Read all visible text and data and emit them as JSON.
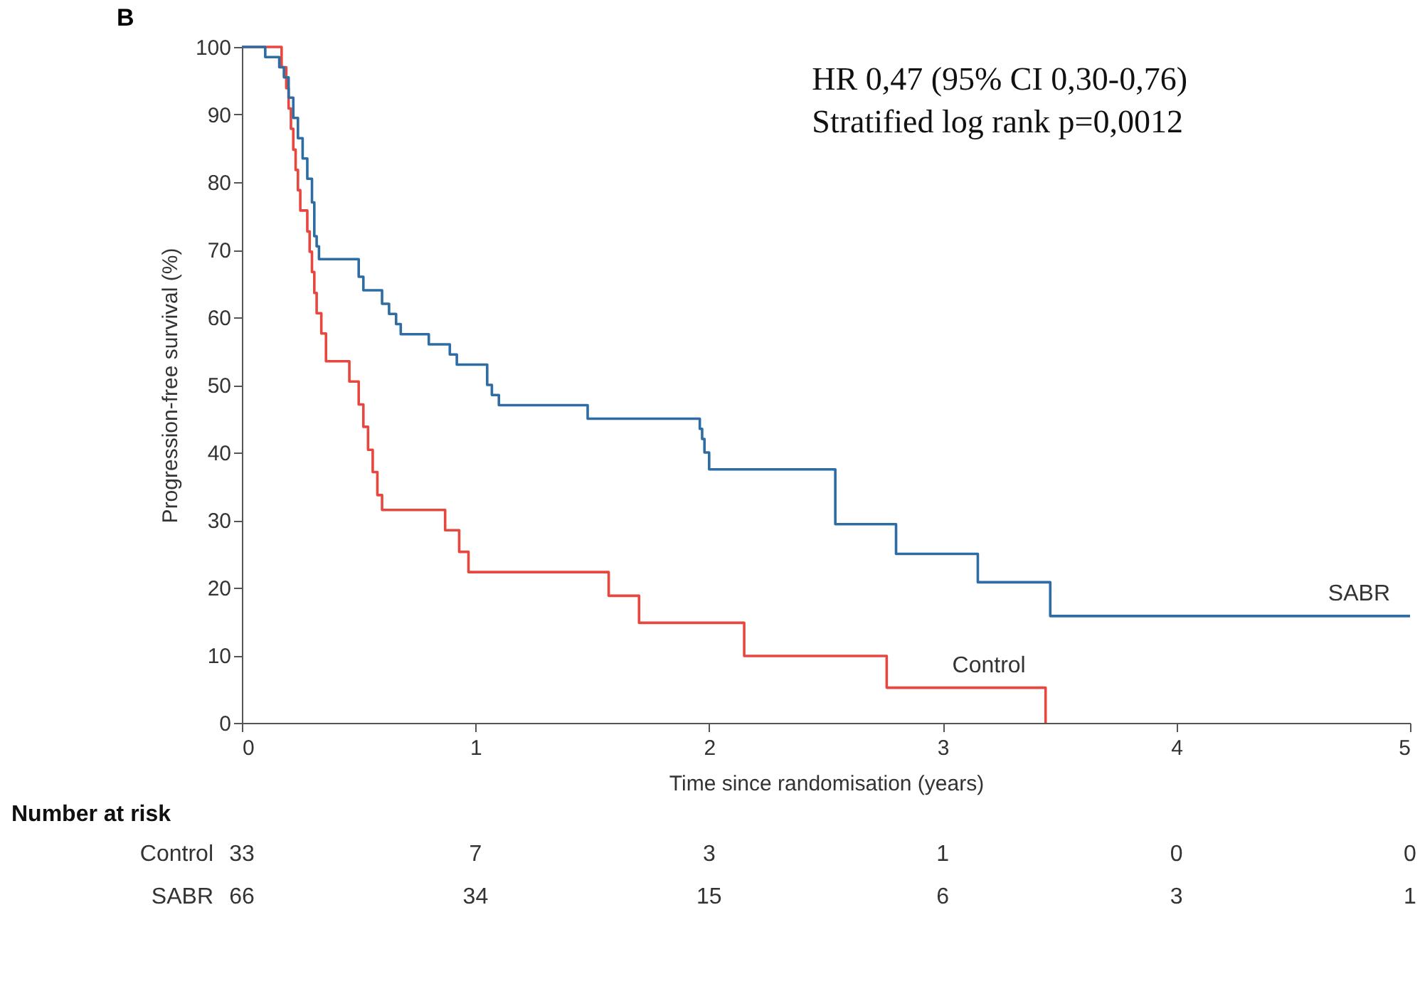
{
  "chart_data": {
    "type": "step",
    "title": "B",
    "xlabel": "Time since randomisation (years)",
    "ylabel": "Progression-free survival (%)",
    "xlim": [
      0,
      5
    ],
    "xticks": [
      0,
      1,
      2,
      3,
      4,
      5
    ],
    "ylim": [
      0,
      100
    ],
    "yticks": [
      0,
      10,
      20,
      30,
      40,
      50,
      60,
      70,
      80,
      90,
      100
    ],
    "series": [
      {
        "name": "Control",
        "color": "#e8473f",
        "x": [
          0,
          0.17,
          0.19,
          0.2,
          0.21,
          0.22,
          0.23,
          0.24,
          0.25,
          0.28,
          0.29,
          0.3,
          0.31,
          0.32,
          0.34,
          0.36,
          0.46,
          0.5,
          0.52,
          0.54,
          0.56,
          0.58,
          0.6,
          0.87,
          0.93,
          0.97,
          1.57,
          1.7,
          2.15,
          2.76,
          3.44
        ],
        "values": [
          100,
          97,
          93.9,
          90.9,
          87.9,
          84.8,
          81.8,
          78.8,
          75.8,
          72.7,
          69.7,
          66.7,
          63.6,
          60.6,
          57.6,
          53.5,
          50.5,
          47.1,
          43.8,
          40.4,
          37.1,
          33.7,
          31.5,
          28.5,
          25.3,
          22.3,
          18.8,
          14.8,
          9.9,
          5.2,
          0
        ]
      },
      {
        "name": "SABR",
        "color": "#2e6da4",
        "x": [
          0,
          0.1,
          0.16,
          0.18,
          0.2,
          0.22,
          0.24,
          0.26,
          0.28,
          0.3,
          0.31,
          0.32,
          0.33,
          0.5,
          0.52,
          0.6,
          0.63,
          0.66,
          0.68,
          0.8,
          0.89,
          0.92,
          1.05,
          1.07,
          1.1,
          1.48,
          1.96,
          1.97,
          1.98,
          2.0,
          2.54,
          2.8,
          3.15,
          3.46,
          5.0
        ],
        "values": [
          100,
          98.5,
          97,
          95.5,
          92.5,
          89.5,
          86.5,
          83.5,
          80.5,
          77,
          72,
          70.5,
          68.6,
          66,
          64,
          62,
          60.5,
          59,
          57.5,
          56,
          54.5,
          53,
          50,
          48.5,
          47,
          45,
          43.5,
          42,
          40,
          37.5,
          29.4,
          25,
          20.8,
          15.8,
          15.8
        ]
      }
    ],
    "annotations": [
      "HR 0,47 (95% CI 0,30-0,76)",
      "Stratified log rank p=0,0012",
      "Number at risk",
      "33",
      "7",
      "3",
      "1",
      "0",
      "0",
      "66",
      "34",
      "15",
      "6",
      "3",
      "1"
    ]
  }
}
